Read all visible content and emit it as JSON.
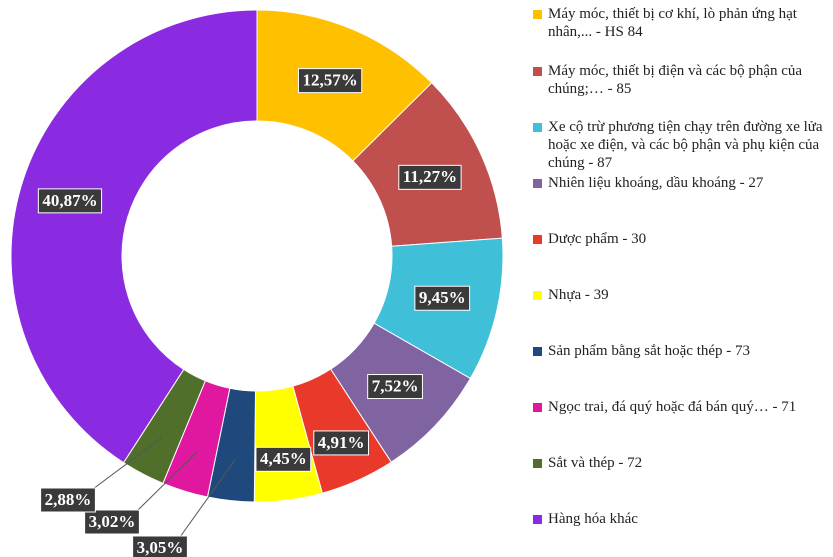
{
  "chart_data": {
    "type": "donut",
    "categories": [
      "Máy móc, thiết bị cơ khí, lò phản ứng hạt nhân,... - HS 84",
      "Máy móc, thiết bị điện và các bộ phận của chúng;… - 85",
      "Xe cộ trừ phương tiện chạy trên đường xe lửa hoặc xe điện, và các bộ phận và phụ kiện của chúng - 87",
      "Nhiên liệu khoáng, dầu khoáng - 27",
      "Dược phẩm - 30",
      "Nhựa - 39",
      "Sản phẩm bằng sắt hoặc thép - 73",
      "Ngọc trai, đá quý hoặc đá bán quý… - 71",
      "Sắt và thép - 72",
      "Hàng hóa khác"
    ],
    "values": [
      12.57,
      11.27,
      9.45,
      7.52,
      4.91,
      4.45,
      3.05,
      3.02,
      2.88,
      40.87
    ],
    "value_labels": [
      "12,57%",
      "11,27%",
      "9,45%",
      "7,52%",
      "4,91%",
      "4,45%",
      "3,05%",
      "3,02%",
      "2,88%",
      "40,87%"
    ],
    "colors": [
      "#ffc000",
      "#c0504d",
      "#3fc0d8",
      "#8064a2",
      "#e8392a",
      "#ffff00",
      "#1f497d",
      "#e0179f",
      "#4f6f2a",
      "#8a2be2"
    ],
    "legend": "right"
  }
}
